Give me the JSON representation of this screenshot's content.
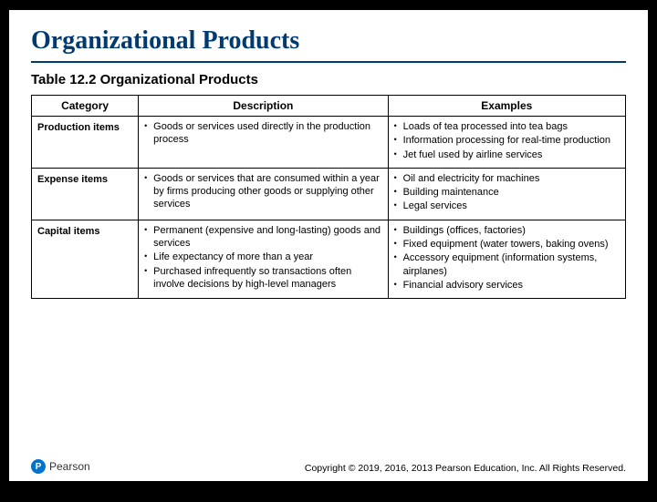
{
  "title": "Organizational Products",
  "subtitle": "Table 12.2 Organizational Products",
  "columns": {
    "c1": "Category",
    "c2": "Description",
    "c3": "Examples"
  },
  "col_widths": {
    "c1": "18%",
    "c2": "42%",
    "c3": "40%"
  },
  "rows": [
    {
      "category": "Production items",
      "description": [
        "Goods or services used directly in the production process"
      ],
      "examples": [
        "Loads of tea processed into tea bags",
        "Information processing for real-time production",
        "Jet fuel used by airline services"
      ]
    },
    {
      "category": "Expense items",
      "description": [
        "Goods or services that are consumed within a year by firms producing other goods or supplying other services"
      ],
      "examples": [
        "Oil and electricity for machines",
        "Building maintenance",
        "Legal services"
      ]
    },
    {
      "category": "Capital items",
      "description": [
        "Permanent (expensive and long-lasting) goods and services",
        "Life expectancy of more than a year",
        "Purchased infrequently so transactions often involve decisions by high-level managers"
      ],
      "examples": [
        "Buildings (offices, factories)",
        "Fixed equipment (water towers, baking ovens)",
        "Accessory equipment (information systems, airplanes)",
        "Financial advisory services"
      ]
    }
  ],
  "logo": {
    "mark": "P",
    "word": "Pearson"
  },
  "copyright": "Copyright © 2019, 2016, 2013 Pearson Education, Inc. All Rights Reserved."
}
